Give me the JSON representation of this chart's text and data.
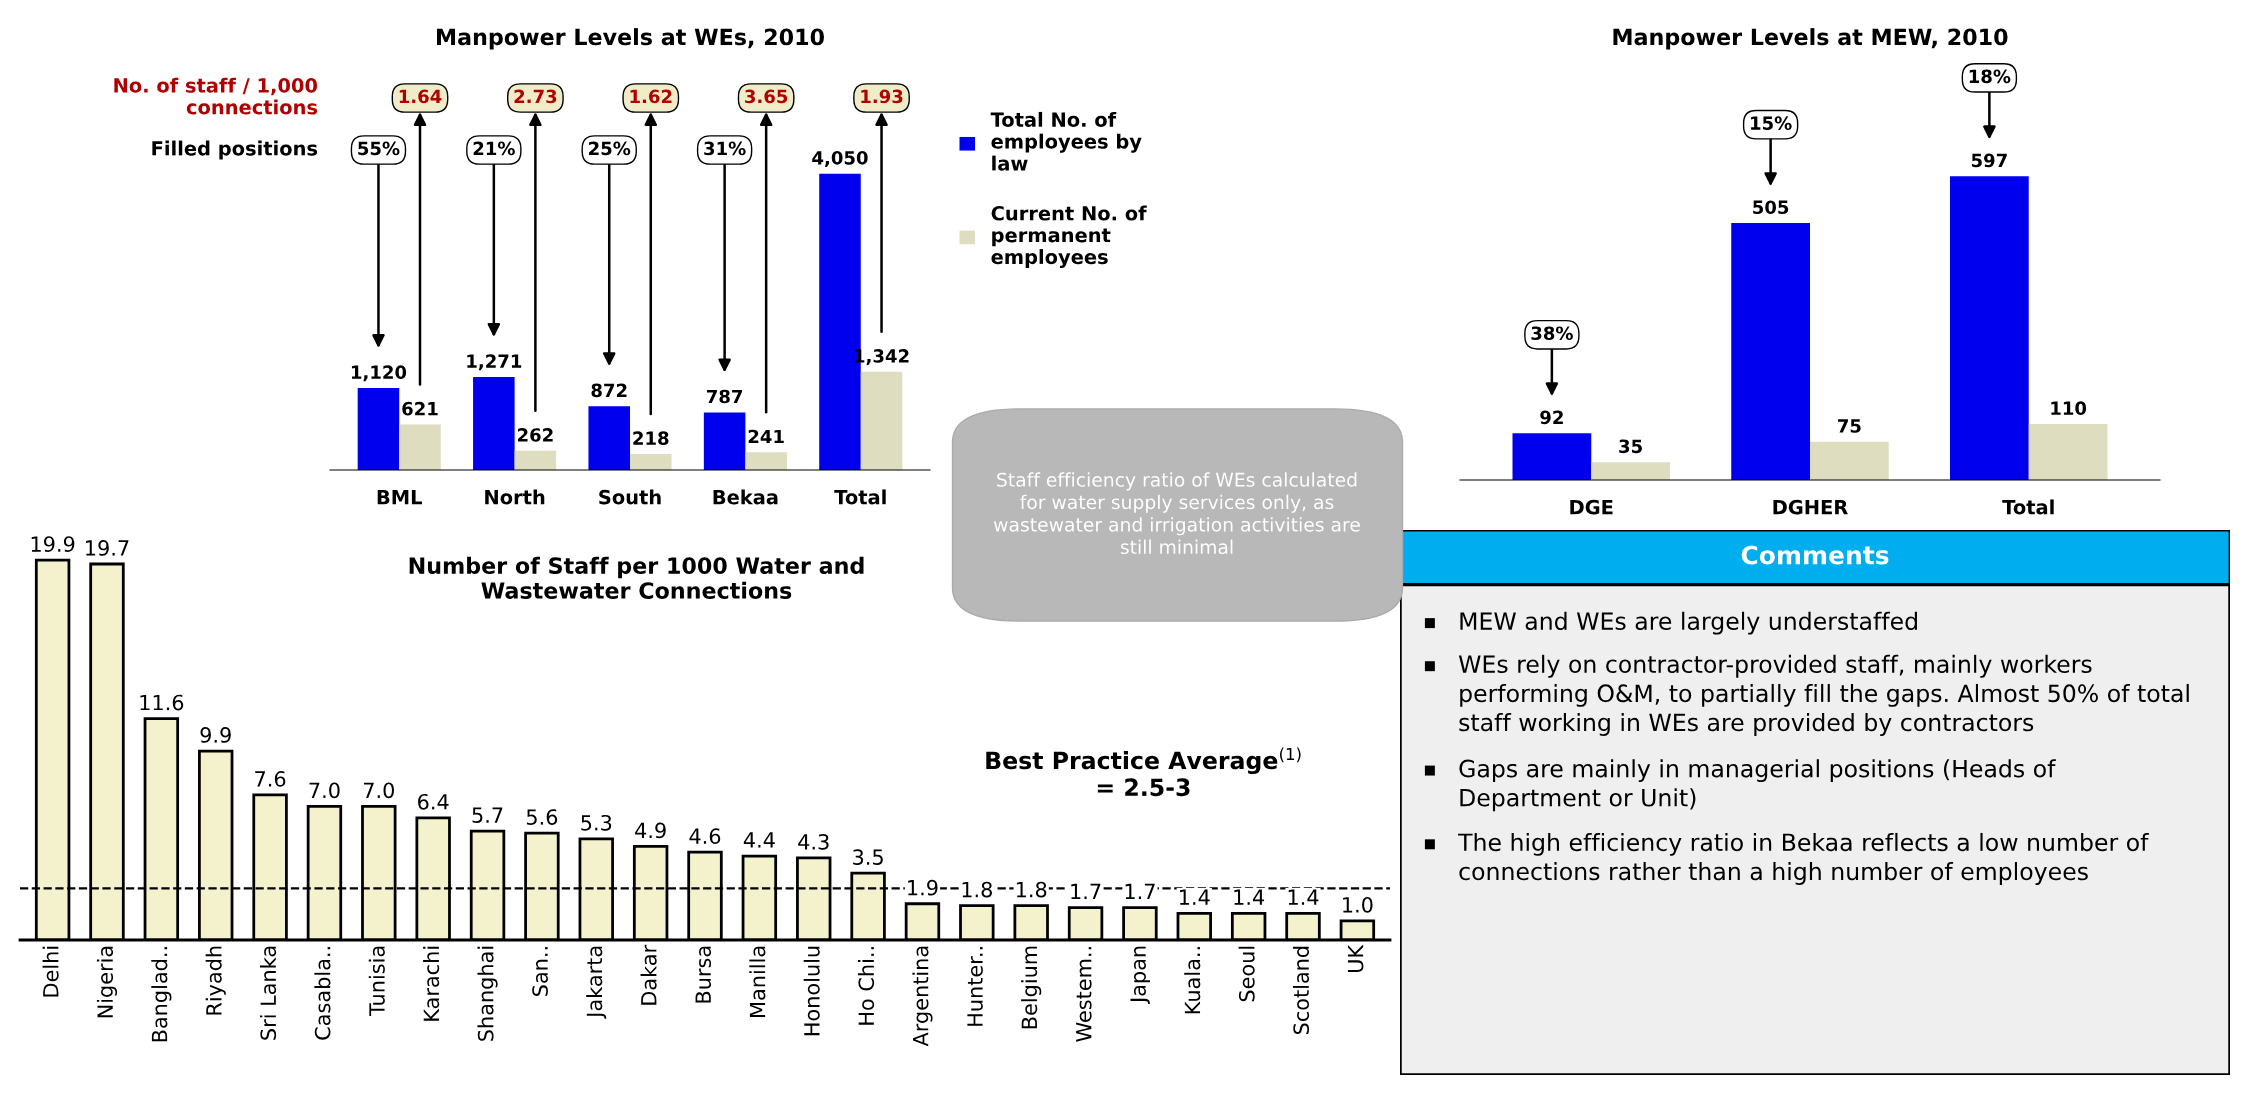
{
  "chart_data": [
    {
      "type": "bar",
      "title": "Manpower Levels at WEs, 2010",
      "categories": [
        "BML",
        "North",
        "South",
        "Bekaa",
        "Total"
      ],
      "series": [
        {
          "name": "Total No. of employees by law",
          "color": "#0000ee",
          "values": [
            1120,
            1271,
            872,
            787,
            4050
          ],
          "value_labels": [
            "1,120",
            "1,271",
            "872",
            "787",
            "4,050"
          ]
        },
        {
          "name": "Current No. of permanent employees",
          "color": "#deddc0",
          "values": [
            621,
            262,
            218,
            241,
            1342
          ],
          "value_labels": [
            "621",
            "262",
            "218",
            "241",
            "1,342"
          ]
        }
      ],
      "legend": "right",
      "annotations": [
        "No. of staff / 1,000\nconnections",
        "Filled positions",
        "Staff efficiency ratio of WEs calculated for water supply services only, as wastewater and irrigation activities are still minimal",
        "1.64",
        "2.73",
        "1.62",
        "3.65",
        "1.93",
        "55%",
        "21%",
        "25%",
        "31%"
      ]
    },
    {
      "type": "bar",
      "title": "Manpower Levels at MEW, 2010",
      "categories": [
        "DGE",
        "DGHER",
        "Total"
      ],
      "series": [
        {
          "color": "#0000ee",
          "values": [
            92,
            505,
            597
          ]
        },
        {
          "color": "#deddc0",
          "values": [
            35,
            75,
            110
          ]
        }
      ],
      "data_labels": true,
      "annotations": [
        "38%",
        "15%",
        "18%"
      ]
    },
    {
      "type": "bar",
      "title": "Number of Staff per 1000 Water and\nWastewater Connections",
      "categories": [
        "Delhi",
        "Nigeria",
        "Banglad..",
        "Riyadh",
        "Sri Lanka",
        "Casabla..",
        "Tunisia",
        "Karachi",
        "Shanghai",
        "San..",
        "Jakarta",
        "Dakar",
        "Bursa",
        "Manilla",
        "Honolulu",
        "Ho Chi..",
        "Argentina",
        "Hunter..",
        "Belgium",
        "Westem..",
        "Japan",
        "Kuala..",
        "Seoul",
        "Scotland",
        "UK"
      ],
      "values": [
        19.9,
        19.7,
        11.6,
        9.9,
        7.6,
        7.0,
        7.0,
        6.4,
        5.7,
        5.6,
        5.3,
        4.9,
        4.6,
        4.4,
        4.3,
        3.5,
        1.9,
        1.8,
        1.8,
        1.7,
        1.7,
        1.4,
        1.4,
        1.4,
        1.0
      ],
      "value_labels": [
        "19.9",
        "19.7",
        "11.6",
        "9.9",
        "7.6",
        "7.0",
        "7.0",
        "6.4",
        "5.7",
        "5.6",
        "5.3",
        "4.9",
        "4.6",
        "4.4",
        "4.3",
        "3.5",
        "1.9",
        "1.8",
        "1.8",
        "1.7",
        "1.7",
        "1.4",
        "1.4",
        "1.4",
        "1.0"
      ],
      "color": "#f3f2cc",
      "ref_lines": [
        {
          "axis": "y",
          "value": 2.7,
          "line_style": "dashed"
        }
      ],
      "annotations": [
        "Best Practice Average$^{(1)}$\n= 2.5-3"
      ]
    },
    {
      "type": "other",
      "title": "Comments",
      "annotations": [
        "MEW and WEs are largely understaffed",
        "WEs rely on contractor-provided staff, mainly workers performing O&M, to partially fill the gaps. Almost 50% of total staff working in WEs are provided by contractors",
        "Gaps are mainly in managerial positions (Heads of Department or Unit)",
        "The high efficiency ratio in Bekaa reflects a low number of connections rather than a high number of employees"
      ]
    }
  ]
}
